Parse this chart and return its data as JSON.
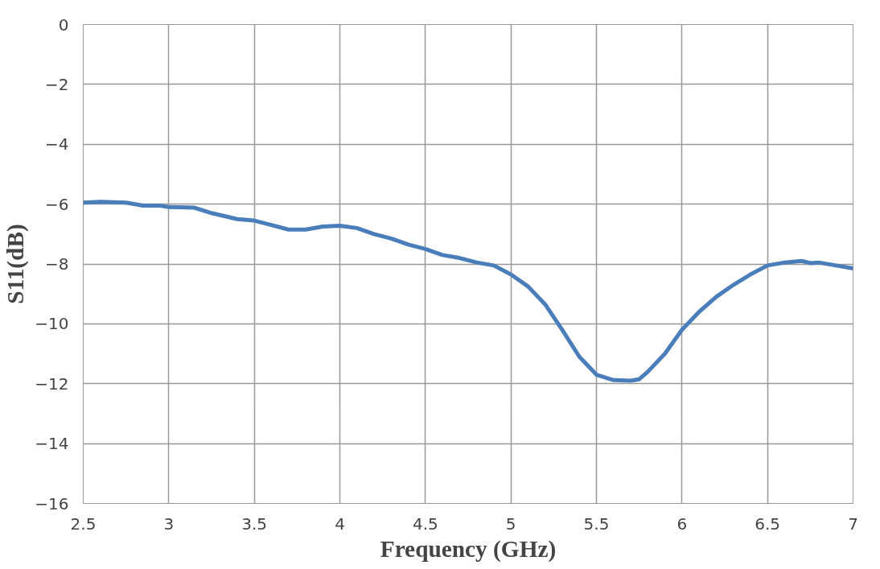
{
  "chart_data": {
    "type": "line",
    "xlabel": "Frequency (GHz)",
    "ylabel": "S11(dB)",
    "xlim": [
      2.5,
      7
    ],
    "xticks": [
      2.5,
      3,
      3.5,
      4,
      4.5,
      5,
      5.5,
      6,
      6.5,
      7
    ],
    "ylim": [
      -16,
      0
    ],
    "yticks": [
      -16,
      -14,
      -12,
      -10,
      -8,
      -6,
      -4,
      -2,
      0
    ],
    "grid": true,
    "marker": "none",
    "line_style": "solid",
    "series": [
      {
        "color": "#4a7ebb",
        "x": [
          2.5,
          2.6,
          2.75,
          2.85,
          2.95,
          3.0,
          3.15,
          3.25,
          3.4,
          3.5,
          3.6,
          3.7,
          3.8,
          3.9,
          4.0,
          4.1,
          4.2,
          4.3,
          4.4,
          4.5,
          4.6,
          4.7,
          4.8,
          4.9,
          5.0,
          5.1,
          5.2,
          5.3,
          5.4,
          5.5,
          5.6,
          5.7,
          5.75,
          5.8,
          5.9,
          6.0,
          6.1,
          6.2,
          6.3,
          6.4,
          6.5,
          6.6,
          6.7,
          6.75,
          6.8,
          6.9,
          7.0
        ],
        "values": [
          -5.95,
          -5.92,
          -5.95,
          -6.05,
          -6.05,
          -6.1,
          -6.12,
          -6.3,
          -6.5,
          -6.55,
          -6.7,
          -6.85,
          -6.85,
          -6.75,
          -6.72,
          -6.8,
          -7.0,
          -7.15,
          -7.35,
          -7.5,
          -7.7,
          -7.8,
          -7.95,
          -8.05,
          -8.35,
          -8.75,
          -9.35,
          -10.2,
          -11.1,
          -11.7,
          -11.88,
          -11.9,
          -11.85,
          -11.6,
          -11.0,
          -10.2,
          -9.6,
          -9.1,
          -8.7,
          -8.35,
          -8.05,
          -7.95,
          -7.9,
          -7.97,
          -7.95,
          -8.05,
          -8.15
        ]
      }
    ]
  }
}
